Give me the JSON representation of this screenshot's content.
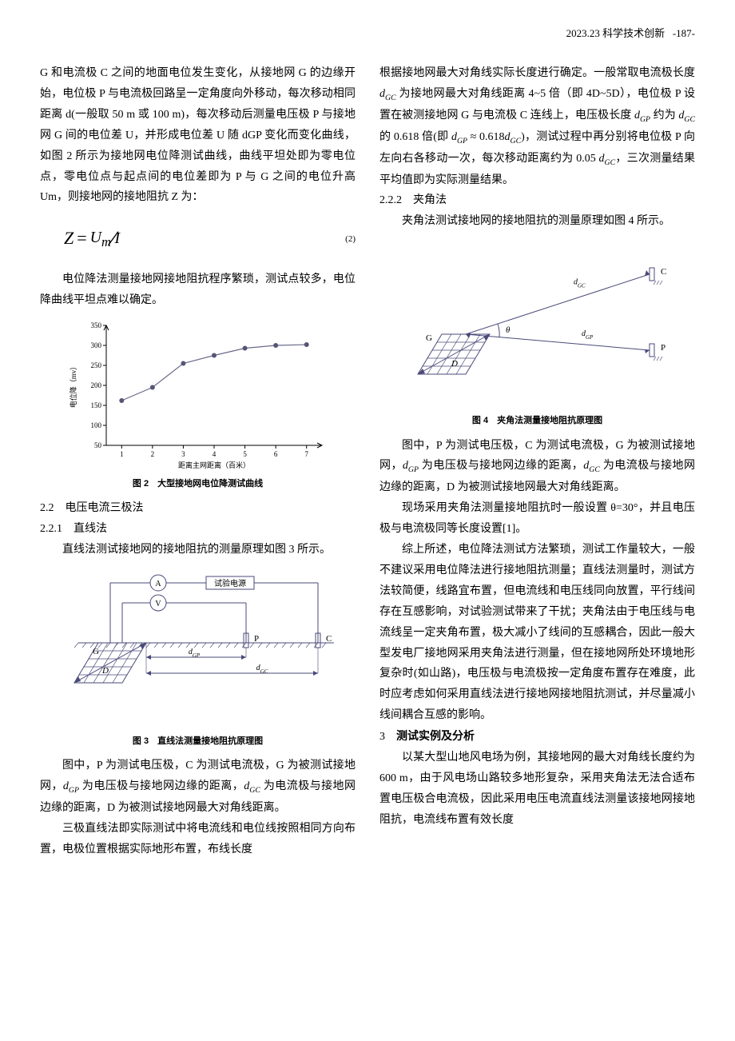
{
  "header": {
    "issue": "2023.23",
    "journal": "科学技术创新",
    "page": "-187-"
  },
  "left": {
    "p1": "G 和电流极 C 之间的地面电位发生变化，从接地网 G 的边缘开始，电位极 P 与电流极回路呈一定角度向外移动，每次移动相同距离 d(一般取 50 m 或 100 m)，每次移动后测量电压极 P 与接地网 G 间的电位差 U，并形成电位差 U 随 dGP 变化而变化曲线，如图 2 所示为接地网电位降测试曲线，曲线平坦处即为零电位点，零电位点与起点间的电位差即为 P 与 G 之间的电位升高 Um，则接地网的接地阻抗 Z 为：",
    "eq2": {
      "lhs": "Z",
      "num": "U",
      "num_sub": "m",
      "den": "I",
      "label": "(2)"
    },
    "p2": "电位降法测量接地网接地阻抗程序繁琐，测试点较多，电位降曲线平坦点难以确定。",
    "chart": {
      "type": "line",
      "x_values": [
        1,
        2,
        3,
        4,
        5,
        6,
        7
      ],
      "y_values": [
        162,
        195,
        255,
        275,
        293,
        300,
        302
      ],
      "xlim": [
        0.5,
        7.5
      ],
      "ylim": [
        50,
        350
      ],
      "ytick_step": 50,
      "xlabel": "距离主网距离（百米）",
      "ylabel": "电位降（mv）",
      "label_fontsize": 9,
      "line_color": "#6a6a8a",
      "marker_color": "#555577",
      "marker": "circle",
      "background_color": "#ffffff",
      "grid": false,
      "tick_color": "#000000",
      "axis_color": "#000000"
    },
    "fig2_caption": "图 2　大型接地网电位降测试曲线",
    "h2_2": "2.2　电压电流三极法",
    "h2_21": "2.2.1　直线法",
    "p3": "直线法测试接地网的接地阻抗的测量原理如图 3 所示。",
    "diagram3": {
      "type": "schematic",
      "label_A": "A",
      "label_V": "V",
      "label_source": "试验电源",
      "label_G": "G",
      "label_P": "P",
      "label_C": "C",
      "label_dGP": "dGP",
      "label_dGC": "dGC",
      "label_D": "D",
      "stroke_color": "#4a4a7a",
      "stroke_width": 1
    },
    "fig3_caption": "图 3　直线法测量接地阻抗原理图",
    "p4_a": "图中，P 为测试电压极，C 为测试电流极，G 为被测试接地网，",
    "p4_b": " 为电压极与接地网边缘的距离，",
    "p4_c": " 为电流极与接地网边缘的距离，D 为被测试接地网最大对角线距离。",
    "p5": "三极直线法即实际测试中将电流线和电位线按照相同方向布置，电极位置根据实际地形布置，布线长度"
  },
  "right": {
    "p1_a": "根据接地网最大对角线实际长度进行确定。一般常取电流极长度 ",
    "p1_b": " 为接地网最大对角线距离 4~5 倍（即 4D~5D），电位极 P 设置在被测接地网 G 与电流极 C 连线上，电压极长度 ",
    "p1_c": " 约为 ",
    "p1_d": " 的 0.618 倍(即 ",
    "p1_e": ")，测试过程中再分别将电位极 P 向左向右各移动一次，每次移动距离约为 0.05 ",
    "p1_f": "，三次测量结果平均值即为实际测量结果。",
    "approx_eq": "dGP ≈ 0.618dGC",
    "h2_22": "2.2.2　夹角法",
    "p2": "夹角法测试接地网的接地阻抗的测量原理如图 4 所示。",
    "diagram4": {
      "type": "schematic",
      "label_G": "G",
      "label_C": "C",
      "label_P": "P",
      "label_theta": "θ",
      "label_dGC": "dGC",
      "label_dGP": "dGP",
      "label_D": "D",
      "stroke_color": "#4a4a7a",
      "stroke_width": 1
    },
    "fig4_caption": "图 4　夹角法测量接地阻抗原理图",
    "p3_a": "图中，P 为测试电压极，C 为测试电流极，G 为被测试接地网，",
    "p3_b": " 为电压极与接地网边缘的距离，",
    "p3_c": " 为电流极与接地网边缘的距离，D 为被测试接地网最大对角线距离。",
    "p4": "现场采用夹角法测量接地阻抗时一般设置 θ=30°，并且电压极与电流极同等长度设置[1]。",
    "p5": "综上所述，电位降法测试方法繁琐，测试工作量较大，一般不建议采用电位降法进行接地阻抗测量；直线法测量时，测试方法较简便，线路宜布置，但电流线和电压线同向放置，平行线间存在互感影响，对试验测试带来了干扰；夹角法由于电压线与电流线呈一定夹角布置，极大减小了线间的互感耦合，因此一般大型发电厂接地网采用夹角法进行测量，但在接地网所处环境地形复杂时(如山路)，电压极与电流极按一定角度布置存在难度，此时应考虑如何采用直线法进行接地网接地阻抗测试，并尽量减小线间耦合互感的影响。",
    "h3_title": "测试实例及分析",
    "h3_num": "3",
    "p6": "以某大型山地风电场为例，其接地网的最大对角线长度约为 600 m，由于风电场山路较多地形复杂，采用夹角法无法合适布置电压极合电流极，因此采用电压电流直线法测量该接地网接地阻抗，电流线布置有效长度"
  }
}
